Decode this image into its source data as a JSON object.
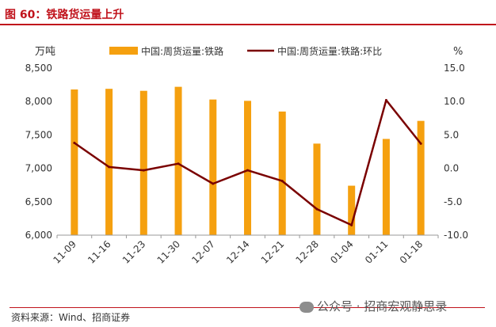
{
  "title": "图 60：铁路货运量上升",
  "footer": {
    "source": "资料来源：Wind、招商证券",
    "watermark": "公众号 · 招商宏观静思录"
  },
  "chart_data": {
    "type": "bar",
    "categories": [
      "11-09",
      "11-16",
      "11-23",
      "11-30",
      "12-07",
      "12-14",
      "12-21",
      "12-28",
      "01-04",
      "01-11",
      "01-18"
    ],
    "y_left_label": "万吨",
    "y_right_label": "%",
    "y_left_range": [
      6000,
      8500
    ],
    "y_right_range": [
      -10,
      15
    ],
    "y_left_ticks": [
      "8,500",
      "8,000",
      "7,500",
      "7,000",
      "6,500",
      "6,000"
    ],
    "y_right_ticks": [
      "15.0",
      "10.0",
      "5.0",
      "0.0",
      "-5.0",
      "-10.0"
    ],
    "legend_position": "top",
    "series": [
      {
        "name": "中国:周货运量:铁路",
        "type": "bar",
        "axis": "left",
        "color": "#f5a00f",
        "values": [
          8180,
          8190,
          8160,
          8220,
          8030,
          8010,
          7850,
          7370,
          6740,
          7440,
          7710
        ]
      },
      {
        "name": "中国:周货运量:铁路:环比",
        "type": "line",
        "axis": "right",
        "color": "#7a0000",
        "values": [
          3.8,
          0.2,
          -0.3,
          0.7,
          -2.3,
          -0.3,
          -1.9,
          -6.1,
          -8.5,
          10.2,
          3.7
        ]
      }
    ]
  }
}
